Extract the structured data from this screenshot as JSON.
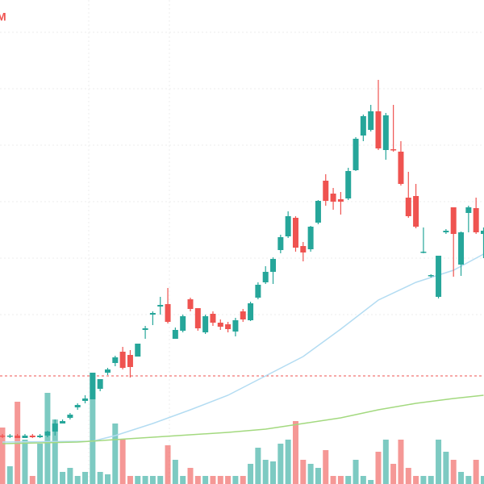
{
  "chart_data": {
    "type": "candlestick",
    "label": "M",
    "ylim": [
      0,
      600
    ],
    "up_color": "#26a69a",
    "down_color": "#ef5350",
    "open": [
      60,
      59,
      60,
      57,
      60,
      58,
      60,
      65,
      75,
      82,
      95,
      103,
      105,
      118,
      138,
      150,
      164,
      160,
      158,
      191,
      210,
      220,
      223,
      180,
      190,
      229,
      218,
      188,
      211,
      200,
      198,
      189,
      214,
      203,
      231,
      250,
      263,
      290,
      307,
      330,
      295,
      291,
      324,
      376,
      360,
      353,
      354,
      389,
      432,
      439,
      462,
      414,
      415,
      412,
      355,
      357,
      287,
      258,
      232,
      312,
      343,
      272,
      336,
      342,
      310
    ],
    "close": [
      59,
      60,
      57,
      60,
      58,
      60,
      65,
      75,
      78,
      86,
      98,
      106,
      138,
      130,
      142,
      157,
      144,
      145,
      174,
      193,
      212,
      222,
      201,
      191,
      208,
      217,
      193,
      208,
      200,
      195,
      192,
      203,
      204,
      224,
      247,
      263,
      279,
      306,
      332,
      293,
      287,
      319,
      351,
      351,
      350,
      350,
      388,
      428,
      456,
      462,
      416,
      457,
      414,
      372,
      332,
      319,
      288,
      259,
      283,
      314,
      310,
      312,
      343,
      312,
      314
    ],
    "high": [
      62,
      62,
      62,
      62,
      62,
      62,
      66,
      80,
      80,
      88,
      100,
      110,
      138,
      130,
      144,
      159,
      170,
      166,
      174,
      196,
      214,
      232,
      243,
      194,
      210,
      231,
      218,
      210,
      214,
      204,
      201,
      206,
      217,
      226,
      250,
      270,
      281,
      309,
      338,
      332,
      300,
      320,
      352,
      384,
      367,
      362,
      392,
      430,
      458,
      470,
      501,
      460,
      470,
      425,
      387,
      372,
      318,
      260,
      283,
      316,
      343,
      313,
      345,
      355,
      318
    ],
    "low": [
      57,
      57,
      57,
      57,
      57,
      57,
      58,
      60,
      75,
      80,
      92,
      100,
      105,
      115,
      135,
      146,
      142,
      132,
      158,
      180,
      197,
      210,
      199,
      180,
      188,
      214,
      190,
      186,
      196,
      191,
      188,
      183,
      201,
      202,
      229,
      248,
      248,
      286,
      305,
      288,
      276,
      288,
      322,
      345,
      340,
      334,
      352,
      388,
      425,
      437,
      414,
      402,
      412,
      370,
      330,
      317,
      286,
      256,
      230,
      310,
      257,
      258,
      312,
      310,
      280
    ],
    "volume": [
      70,
      22,
      102,
      55,
      10,
      50,
      113,
      80,
      15,
      20,
      10,
      15,
      138,
      15,
      12,
      75,
      55,
      10,
      10,
      10,
      10,
      10,
      48,
      30,
      10,
      20,
      10,
      10,
      10,
      10,
      10,
      10,
      10,
      25,
      45,
      30,
      28,
      50,
      55,
      78,
      30,
      25,
      20,
      42,
      10,
      10,
      10,
      30,
      10,
      5,
      40,
      55,
      25,
      55,
      20,
      10,
      10,
      10,
      55,
      40,
      30,
      15,
      10,
      30,
      10
    ],
    "reference_line": 134,
    "reference_color": "#ef5350",
    "series": [
      {
        "color": "#b3dcf2",
        "x": [
          0,
          12,
          15,
          20,
          25,
          30,
          35,
          40,
          45,
          50,
          55,
          60,
          64
        ],
        "values": [
          52,
          53,
          60,
          75,
          92,
          110,
          134,
          158,
          192,
          228,
          250,
          265,
          285
        ]
      },
      {
        "color": "#a3d97f",
        "x": [
          0,
          10,
          20,
          30,
          35,
          40,
          45,
          50,
          55,
          60,
          64
        ],
        "values": [
          50,
          52,
          58,
          64,
          68,
          75,
          82,
          92,
          100,
          106,
          110
        ]
      }
    ]
  }
}
